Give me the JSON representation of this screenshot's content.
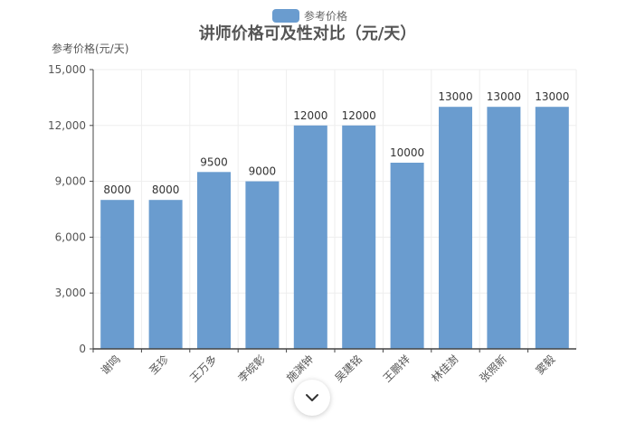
{
  "colors": {
    "bar": "#6a9ccf",
    "axis": "#444444",
    "grid": "#eeeeee",
    "background": "#ffffff",
    "tick_text": "#555555",
    "title_text": "#555555"
  },
  "icons": {
    "scroll": "chevron-down-icon"
  },
  "chart_data": {
    "type": "bar",
    "title": "讲师价格可及性对比（元/天）",
    "ylabel": "参考价格(元/天)",
    "xlabel": "",
    "categories": [
      "谢鸣",
      "圣珍",
      "王万多",
      "李皖彰",
      "施渊钟",
      "吴建铭",
      "王鹏祥",
      "林佳澍",
      "张照新",
      "窦毅"
    ],
    "series": [
      {
        "name": "参考价格",
        "values": [
          8000,
          8000,
          9500,
          9000,
          12000,
          12000,
          10000,
          13000,
          13000,
          13000
        ]
      }
    ],
    "data_labels": [
      "8000",
      "8000",
      "9500",
      "9000",
      "12000",
      "12000",
      "10000",
      "13000",
      "13000",
      "13000"
    ],
    "ylim": [
      0,
      15000
    ],
    "yticks": [
      0,
      3000,
      6000,
      9000,
      12000,
      15000
    ],
    "ytick_labels": [
      "0",
      "3,000",
      "6,000",
      "9,000",
      "12,000",
      "15,000"
    ],
    "grid": true,
    "legend_position": "top-center"
  }
}
